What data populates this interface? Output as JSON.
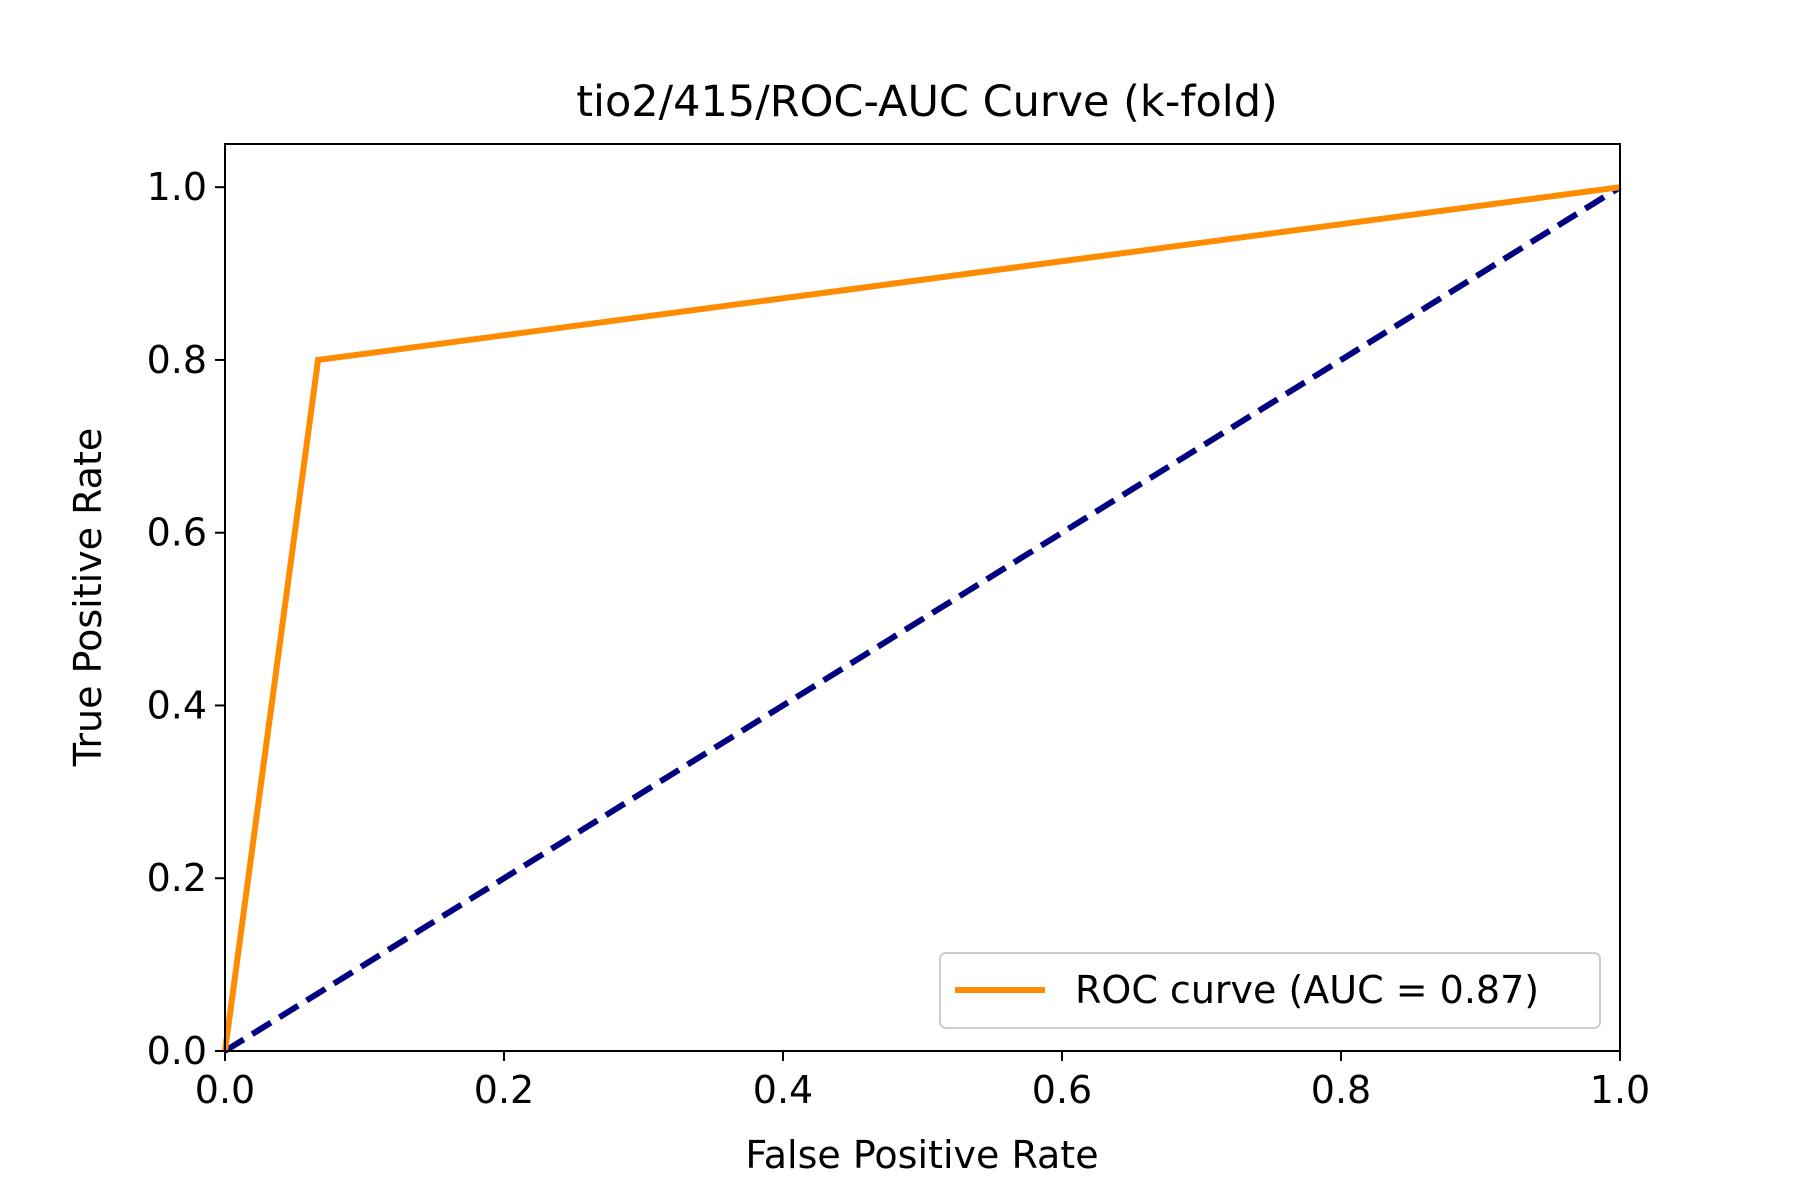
{
  "chart_data": {
    "type": "line",
    "title": "tio2/415/ROC-AUC Curve (k-fold)",
    "xlabel": "False Positive Rate",
    "ylabel": "True Positive Rate",
    "xlim": [
      0.0,
      1.0
    ],
    "ylim": [
      0.0,
      1.05
    ],
    "xticks": [
      "0.0",
      "0.2",
      "0.4",
      "0.6",
      "0.8",
      "1.0"
    ],
    "yticks": [
      "0.0",
      "0.2",
      "0.4",
      "0.6",
      "0.8",
      "1.0"
    ],
    "grid": false,
    "legend_position": "lower-right",
    "series": [
      {
        "name": "ROC curve (AUC = 0.87)",
        "color": "#ff8c00",
        "style": "solid",
        "x": [
          0.0,
          0.0667,
          1.0
        ],
        "y": [
          0.0,
          0.8,
          1.0
        ]
      },
      {
        "color": "#000080",
        "style": "dashed",
        "x": [
          0.0,
          1.0
        ],
        "y": [
          0.0,
          1.0
        ]
      }
    ]
  }
}
